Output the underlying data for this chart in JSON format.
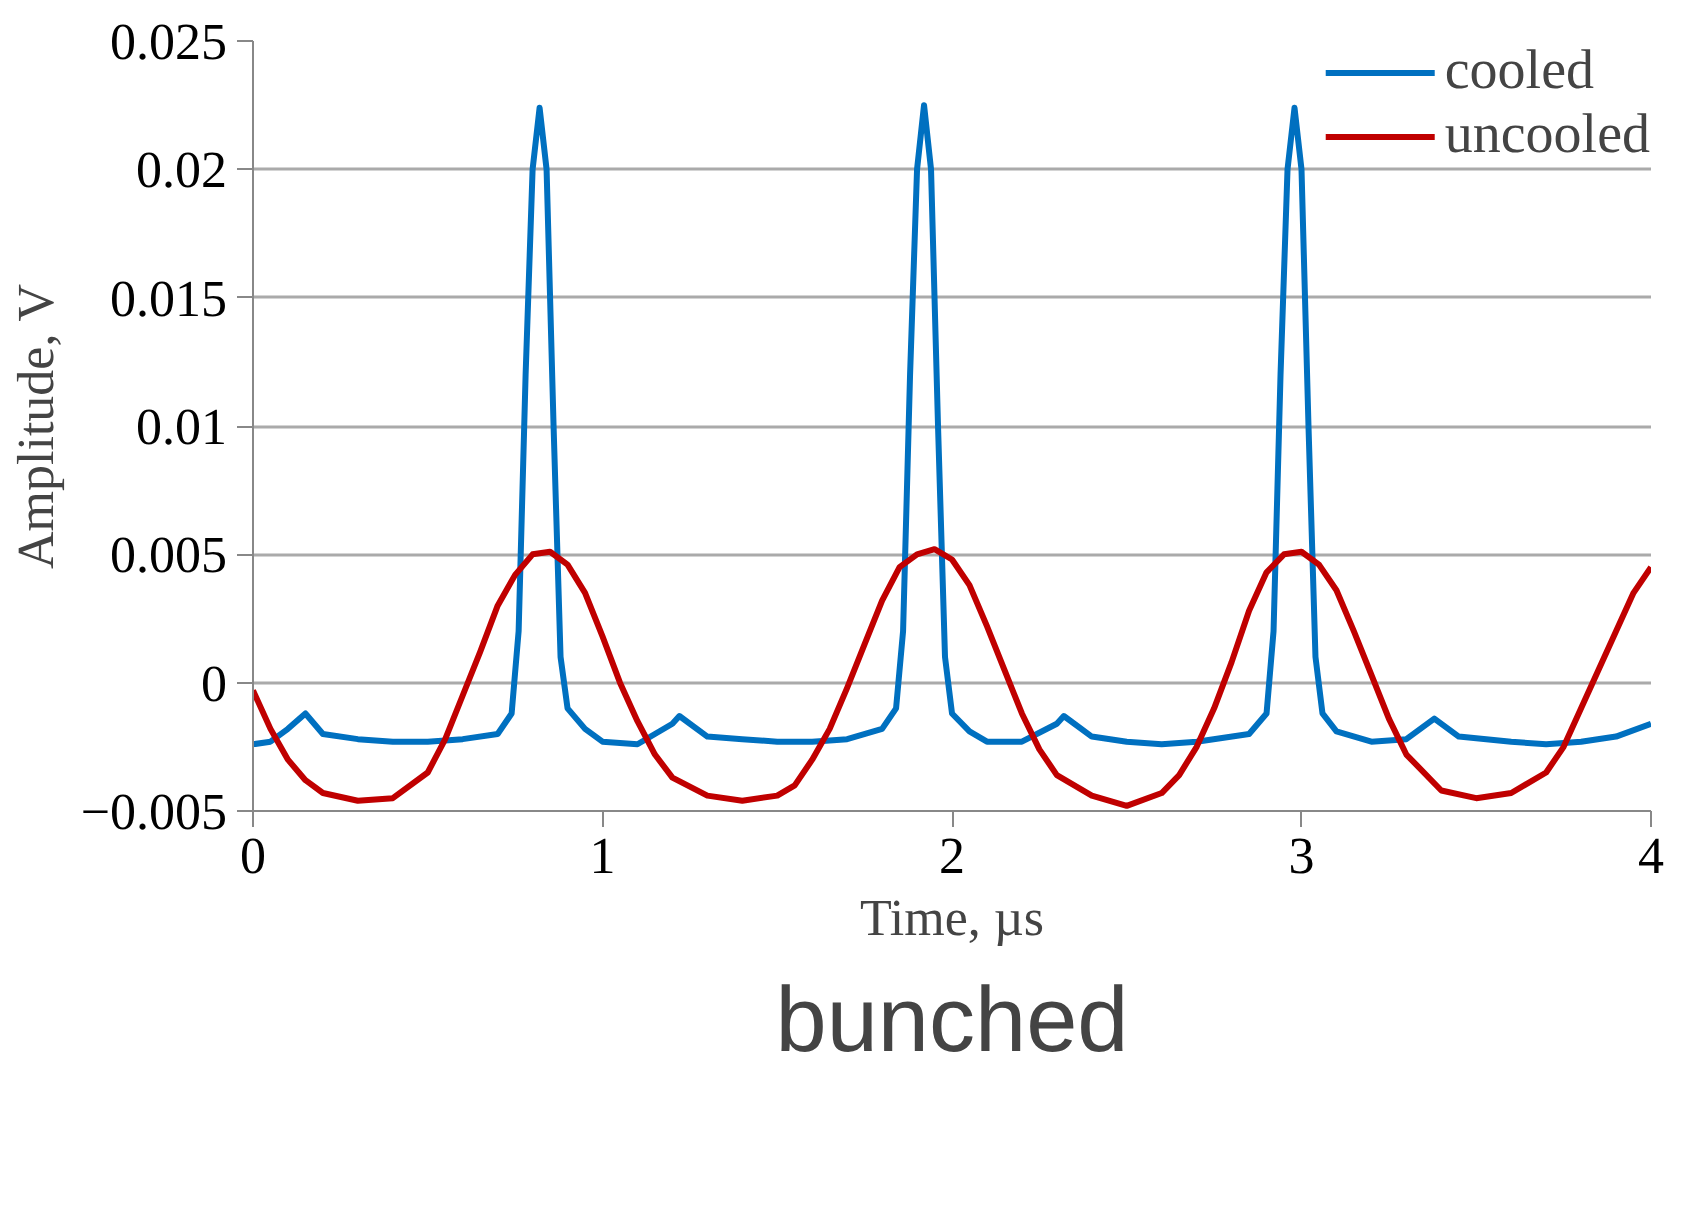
{
  "chart_data": {
    "type": "line",
    "xlabel": "Time, µs",
    "ylabel": "Amplitude, V",
    "annotations": [
      "bunched"
    ],
    "xlim": [
      0,
      4
    ],
    "xticks": [
      0,
      1,
      2,
      3,
      4
    ],
    "ylim": [
      -0.005,
      0.025
    ],
    "yticks": [
      -0.005,
      0,
      0.005,
      0.01,
      0.015,
      0.02,
      0.025
    ],
    "grid": "y",
    "legend": "top right",
    "series": [
      {
        "name": "cooled",
        "color": "#0070c0",
        "x": [
          0,
          0.05,
          0.1,
          0.15,
          0.2,
          0.3,
          0.4,
          0.5,
          0.6,
          0.7,
          0.74,
          0.76,
          0.78,
          0.8,
          0.82,
          0.84,
          0.86,
          0.88,
          0.9,
          0.95,
          1.0,
          1.1,
          1.2,
          1.22,
          1.3,
          1.4,
          1.5,
          1.6,
          1.7,
          1.8,
          1.84,
          1.86,
          1.88,
          1.9,
          1.92,
          1.94,
          1.96,
          1.98,
          2.0,
          2.05,
          2.1,
          2.2,
          2.3,
          2.32,
          2.4,
          2.5,
          2.6,
          2.7,
          2.85,
          2.9,
          2.92,
          2.94,
          2.96,
          2.98,
          3.0,
          3.02,
          3.04,
          3.06,
          3.1,
          3.2,
          3.3,
          3.38,
          3.45,
          3.6,
          3.7,
          3.8,
          3.9,
          4.0
        ],
        "values": [
          -0.0024,
          -0.0023,
          -0.0018,
          -0.0012,
          -0.002,
          -0.0022,
          -0.0023,
          -0.0023,
          -0.0022,
          -0.002,
          -0.0012,
          0.002,
          0.012,
          0.02,
          0.0224,
          0.02,
          0.01,
          0.001,
          -0.001,
          -0.0018,
          -0.0023,
          -0.0024,
          -0.0016,
          -0.0013,
          -0.0021,
          -0.0022,
          -0.0023,
          -0.0023,
          -0.0022,
          -0.0018,
          -0.001,
          0.002,
          0.012,
          0.02,
          0.0225,
          0.02,
          0.01,
          0.001,
          -0.0012,
          -0.0019,
          -0.0023,
          -0.0023,
          -0.0016,
          -0.0013,
          -0.0021,
          -0.0023,
          -0.0024,
          -0.0023,
          -0.002,
          -0.0012,
          0.002,
          0.012,
          0.02,
          0.0224,
          0.02,
          0.01,
          0.001,
          -0.0012,
          -0.0019,
          -0.0023,
          -0.0022,
          -0.0014,
          -0.0021,
          -0.0023,
          -0.0024,
          -0.0023,
          -0.0021,
          -0.0016
        ]
      },
      {
        "name": "uncooled",
        "color": "#c00000",
        "x": [
          0,
          0.05,
          0.1,
          0.15,
          0.2,
          0.3,
          0.4,
          0.5,
          0.55,
          0.6,
          0.65,
          0.7,
          0.75,
          0.8,
          0.85,
          0.9,
          0.95,
          1.0,
          1.05,
          1.1,
          1.15,
          1.2,
          1.3,
          1.4,
          1.5,
          1.55,
          1.6,
          1.65,
          1.7,
          1.75,
          1.8,
          1.85,
          1.9,
          1.95,
          2.0,
          2.05,
          2.1,
          2.15,
          2.2,
          2.25,
          2.3,
          2.4,
          2.5,
          2.6,
          2.65,
          2.7,
          2.75,
          2.8,
          2.85,
          2.9,
          2.95,
          3.0,
          3.05,
          3.1,
          3.15,
          3.2,
          3.25,
          3.3,
          3.4,
          3.5,
          3.6,
          3.7,
          3.75,
          3.8,
          3.85,
          3.9,
          3.95,
          4.0
        ],
        "values": [
          -0.0003,
          -0.0018,
          -0.003,
          -0.0038,
          -0.0043,
          -0.0046,
          -0.0045,
          -0.0035,
          -0.0022,
          -0.0005,
          0.0012,
          0.003,
          0.0042,
          0.005,
          0.0051,
          0.0046,
          0.0035,
          0.0018,
          0.0,
          -0.0015,
          -0.0028,
          -0.0037,
          -0.0044,
          -0.0046,
          -0.0044,
          -0.004,
          -0.003,
          -0.0018,
          -0.0002,
          0.0015,
          0.0032,
          0.0045,
          0.005,
          0.0052,
          0.0048,
          0.0038,
          0.0022,
          0.0005,
          -0.0012,
          -0.0026,
          -0.0036,
          -0.0044,
          -0.0048,
          -0.0043,
          -0.0036,
          -0.0025,
          -0.001,
          0.0008,
          0.0028,
          0.0043,
          0.005,
          0.0051,
          0.0046,
          0.0036,
          0.002,
          0.0003,
          -0.0014,
          -0.0028,
          -0.0042,
          -0.0045,
          -0.0043,
          -0.0035,
          -0.0025,
          -0.001,
          0.0005,
          0.002,
          0.0035,
          0.0045
        ]
      }
    ]
  }
}
